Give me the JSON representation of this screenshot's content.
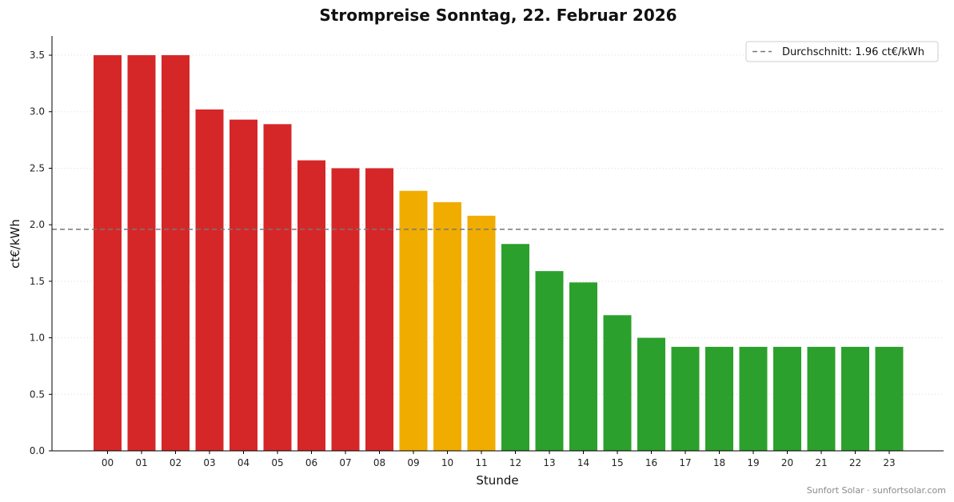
{
  "chart_data": {
    "type": "bar",
    "title": "Strompreise Sonntag, 22. Februar 2026",
    "xlabel": "Stunde",
    "ylabel": "ct€/kWh",
    "categories": [
      "00",
      "01",
      "02",
      "03",
      "04",
      "05",
      "06",
      "07",
      "08",
      "09",
      "10",
      "11",
      "12",
      "13",
      "14",
      "15",
      "16",
      "17",
      "18",
      "19",
      "20",
      "21",
      "22",
      "23"
    ],
    "values": [
      3.5,
      3.5,
      3.5,
      3.02,
      2.93,
      2.89,
      2.57,
      2.5,
      2.5,
      2.3,
      2.2,
      2.08,
      1.83,
      1.59,
      1.49,
      1.2,
      1.0,
      0.92,
      0.92,
      0.92,
      0.92,
      0.92,
      0.92,
      0.92
    ],
    "price_levels": [
      "high",
      "high",
      "high",
      "high",
      "high",
      "high",
      "high",
      "high",
      "high",
      "mid",
      "mid",
      "mid",
      "low",
      "low",
      "low",
      "low",
      "low",
      "low",
      "low",
      "low",
      "low",
      "low",
      "low",
      "low"
    ],
    "level_colors": {
      "high": "#d62728",
      "mid": "#f0ad00",
      "low": "#2ca02c"
    },
    "ylim": [
      0,
      3.67
    ],
    "yticks": [
      "0.0",
      "0.5",
      "1.0",
      "1.5",
      "2.0",
      "2.5",
      "3.0",
      "3.5"
    ],
    "average": 1.96,
    "legend": {
      "label": "Durchschnitt: 1.96 ct€/kWh",
      "placement": "top-right"
    },
    "grid": "horizontal-dotted"
  },
  "footer": "Sunfort Solar · sunfortsolar.com"
}
